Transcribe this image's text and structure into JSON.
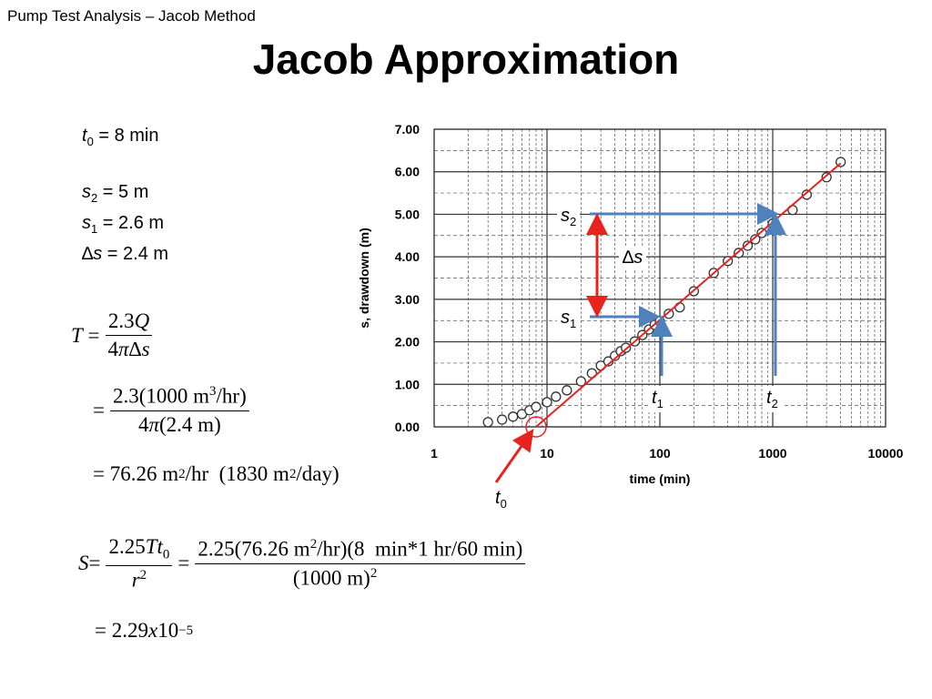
{
  "header": {
    "subtitle": "Pump Test Analysis – Jacob Method",
    "title": "Jacob Approximation"
  },
  "given": {
    "t0": [
      "t",
      "0",
      " = 8 min"
    ],
    "s2": [
      "s",
      "2",
      " = 5 m"
    ],
    "s1": [
      "s",
      "1",
      " = 2.6 m"
    ],
    "ds": [
      "∆",
      "s",
      " = 2.4 m"
    ]
  },
  "equations": {
    "T_def": [
      "T",
      "=",
      "2.3",
      "Q",
      "4",
      "π∆s"
    ],
    "T_sub": [
      "=",
      "2.3(1000 m",
      "3",
      "/hr)",
      "4",
      "π",
      "(2.4 m)"
    ],
    "T_res": [
      "= 76.26 m",
      "2",
      "/hr  (1830 m",
      "2",
      "/day)"
    ],
    "S_def": [
      "S",
      "=",
      "2.25",
      "Tt",
      "0",
      "r",
      "2",
      "=",
      "2.25(76.26 m",
      "2",
      "/hr)(8  min*1 hr/60 min)",
      "(1000 m)",
      "2"
    ],
    "S_res": [
      "= 2.29",
      "x",
      "10",
      "−5"
    ]
  },
  "chart_data": {
    "type": "scatter",
    "xlabel": "time (min)",
    "ylabel": "s, drawdown (m)",
    "xlog": true,
    "grid": true,
    "minor_grid": true,
    "xlim": [
      1,
      10000
    ],
    "xticks": [
      1,
      10,
      100,
      1000,
      10000
    ],
    "ylim": [
      0,
      7
    ],
    "yticks": [
      {
        "value": 0,
        "label": "0.00"
      },
      {
        "value": 1,
        "label": "1.00"
      },
      {
        "value": 2,
        "label": "2.00"
      },
      {
        "value": 3,
        "label": "3.00"
      },
      {
        "value": 4,
        "label": "4.00"
      },
      {
        "value": 5,
        "label": "5.00"
      },
      {
        "value": 6,
        "label": "6.00"
      },
      {
        "value": 7,
        "label": "7.00"
      }
    ],
    "series": [
      {
        "style": "markers",
        "color": "#333333",
        "x": [
          3,
          4,
          5,
          6,
          7,
          8,
          10,
          12,
          15,
          20,
          25,
          30,
          35,
          40,
          45,
          50,
          60,
          70,
          80,
          90,
          100,
          120,
          150,
          200,
          300,
          400,
          500,
          600,
          700,
          800,
          1000,
          1500,
          2000,
          3000,
          4000
        ],
        "values": [
          0.11,
          0.17,
          0.24,
          0.3,
          0.39,
          0.47,
          0.58,
          0.71,
          0.86,
          1.07,
          1.26,
          1.44,
          1.54,
          1.67,
          1.78,
          1.86,
          2.01,
          2.16,
          2.29,
          2.4,
          2.48,
          2.66,
          2.81,
          3.19,
          3.62,
          3.9,
          4.09,
          4.26,
          4.41,
          4.56,
          4.78,
          5.1,
          5.46,
          5.87,
          6.23
        ]
      },
      {
        "style": "line",
        "color": "#e8231f",
        "x": [
          8,
          4000
        ],
        "values": [
          0,
          6.2
        ]
      }
    ],
    "annotations": {
      "s2": [
        "s",
        "2"
      ],
      "s1": [
        "s",
        "1"
      ],
      "ds": [
        "∆",
        "s"
      ],
      "t1": [
        "t",
        "1"
      ],
      "t2": [
        "t",
        "2"
      ],
      "t0": [
        "t",
        "0"
      ]
    }
  }
}
